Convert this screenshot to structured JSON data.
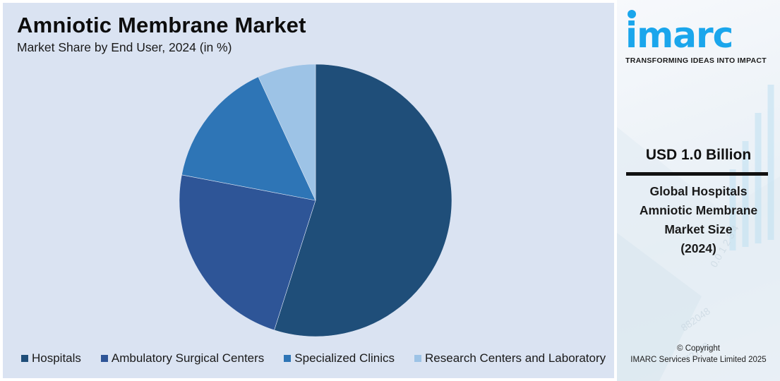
{
  "header": {
    "title": "Amniotic Membrane Market",
    "subtitle": "Market Share by End User, 2024 (in %)"
  },
  "legend": [
    {
      "label": "Hospitals",
      "color": "#1f4e79"
    },
    {
      "label": "Ambulatory Surgical Centers",
      "color": "#2e5597"
    },
    {
      "label": "Specialized Clinics",
      "color": "#2e75b6"
    },
    {
      "label": "Research Centers and Laboratory",
      "color": "#9dc3e6"
    }
  ],
  "side_panel": {
    "logo_text": "imarc",
    "tagline": "TRANSFORMING IDEAS INTO IMPACT",
    "market_value": "USD 1.0 Billion",
    "market_desc_line1": "Global Hospitals",
    "market_desc_line2": "Amniotic Membrane",
    "market_desc_line3": "Market Size",
    "market_desc_line4": "(2024)",
    "copyright_line1": "© Copyright",
    "copyright_line2": "IMARC Services Private Limited 2025"
  },
  "colors": {
    "chart_background": "#dae3f2",
    "brand_blue": "#1aa6ec"
  },
  "chart_data": {
    "type": "pie",
    "title": "Amniotic Membrane Market",
    "subtitle": "Market Share by End User, 2024 (in %)",
    "categories": [
      "Hospitals",
      "Ambulatory Surgical Centers",
      "Specialized Clinics",
      "Research Centers and Laboratory"
    ],
    "values": [
      54.9,
      23.1,
      15.1,
      6.9
    ],
    "colors": [
      "#1f4e79",
      "#2e5597",
      "#2e75b6",
      "#9dc3e6"
    ],
    "start_angle": 0,
    "direction": "clockwise",
    "legend_position": "bottom",
    "data_labels": false
  }
}
